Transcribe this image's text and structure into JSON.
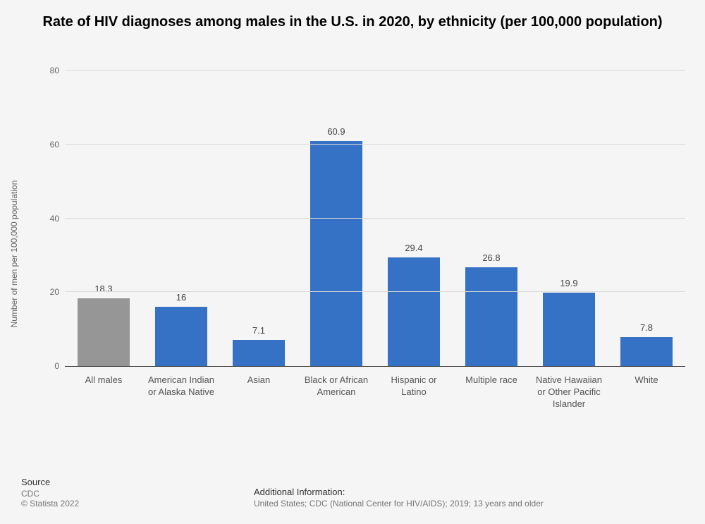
{
  "chart": {
    "type": "bar",
    "title": "Rate of HIV diagnoses among males in the U.S. in 2020, by ethnicity (per 100,000 population)",
    "title_fontsize": 20,
    "title_color": "#000000",
    "ylabel": "Number of men per 100,000 population",
    "ylabel_fontsize": 12,
    "ylabel_color": "#666666",
    "ylim": [
      0,
      80
    ],
    "ytick_step": 20,
    "yticks": [
      0,
      20,
      40,
      60,
      80
    ],
    "grid_color": "#d9d9d9",
    "axis_color": "#333333",
    "background_color": "#f5f5f5",
    "bar_width": 0.68,
    "value_label_fontsize": 13,
    "value_label_color": "#444444",
    "xlabel_fontsize": 13,
    "xlabel_color": "#555555",
    "categories": [
      "All males",
      "American Indian or Alaska Native",
      "Asian",
      "Black or African American",
      "Hispanic or Latino",
      "Multiple race",
      "Native Hawaiian or Other Pacific Islander",
      "White"
    ],
    "values": [
      18.3,
      16,
      7.1,
      60.9,
      29.4,
      26.8,
      19.9,
      7.8
    ],
    "bar_colors": [
      "#969696",
      "#3571c5",
      "#3571c5",
      "#3571c5",
      "#3571c5",
      "#3571c5",
      "#3571c5",
      "#3571c5"
    ]
  },
  "footer": {
    "source_heading": "Source",
    "source_text": "CDC",
    "copyright": "© Statista 2022",
    "addl_heading": "Additional Information:",
    "addl_text": "United States; CDC (National Center for HIV/AIDS); 2019; 13 years and older",
    "heading_fontsize": 13,
    "text_fontsize": 12,
    "heading_color": "#333333",
    "text_color": "#777777"
  }
}
